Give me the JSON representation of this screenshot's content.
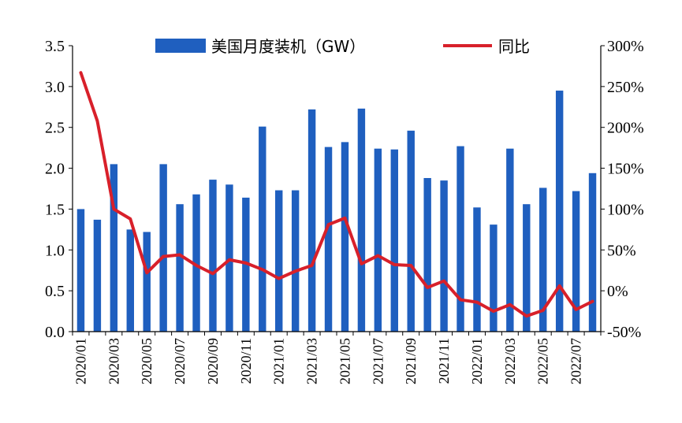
{
  "chart_data": {
    "type": "bar",
    "categories": [
      "2020/01",
      "2020/02",
      "2020/03",
      "2020/04",
      "2020/05",
      "2020/06",
      "2020/07",
      "2020/08",
      "2020/09",
      "2020/10",
      "2020/11",
      "2020/12",
      "2021/01",
      "2021/02",
      "2021/03",
      "2021/04",
      "2021/05",
      "2021/06",
      "2021/07",
      "2021/08",
      "2021/09",
      "2021/10",
      "2021/11",
      "2021/12",
      "2022/01",
      "2022/02",
      "2022/03",
      "2022/04",
      "2022/05",
      "2022/06",
      "2022/07",
      "2022/08"
    ],
    "x_tick_labels": [
      "2020/01",
      "2020/03",
      "2020/05",
      "2020/07",
      "2020/09",
      "2020/11",
      "2021/01",
      "2021/03",
      "2021/05",
      "2021/07",
      "2021/09",
      "2021/11",
      "2022/01",
      "2022/03",
      "2022/05",
      "2022/07"
    ],
    "series": [
      {
        "name": "美国月度装机（GW）",
        "type": "bar",
        "axis": "left",
        "color": "#1F5FBF",
        "values": [
          1.5,
          1.37,
          2.05,
          1.25,
          1.22,
          2.05,
          1.56,
          1.68,
          1.86,
          1.8,
          1.64,
          2.51,
          1.73,
          1.73,
          2.72,
          2.26,
          2.32,
          2.73,
          2.24,
          2.23,
          2.46,
          1.88,
          1.85,
          2.27,
          1.52,
          1.31,
          2.24,
          1.56,
          1.76,
          2.95,
          1.72,
          1.94
        ]
      },
      {
        "name": "同比",
        "type": "line",
        "axis": "right",
        "color": "#D8202A",
        "values": [
          267,
          208,
          100,
          88,
          22,
          42,
          44,
          31,
          21,
          38,
          34,
          26,
          15,
          24,
          31,
          81,
          89,
          33,
          43,
          32,
          31,
          4,
          12,
          -11,
          -14,
          -25,
          -17,
          -31,
          -24,
          6,
          -23,
          -13
        ]
      }
    ],
    "y_left": {
      "min": 0,
      "max": 3.5,
      "ticks": [
        "0.0",
        "0.5",
        "1.0",
        "1.5",
        "2.0",
        "2.5",
        "3.0",
        "3.5"
      ]
    },
    "y_right": {
      "min": -50,
      "max": 300,
      "ticks": [
        "-50%",
        "0%",
        "50%",
        "100%",
        "150%",
        "200%",
        "250%",
        "300%"
      ]
    },
    "title": "",
    "xlabel": "",
    "ylabel": "",
    "legend_position": "top",
    "grid": false
  }
}
